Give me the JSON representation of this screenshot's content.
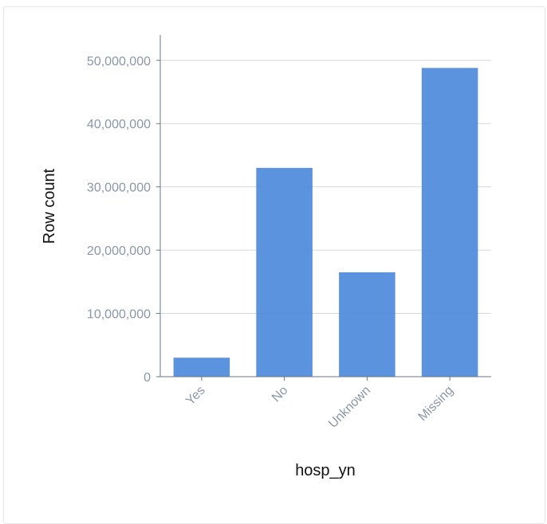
{
  "chart_data": {
    "type": "bar",
    "categories": [
      "Yes",
      "No",
      "Unknown",
      "Missing"
    ],
    "values": [
      3000000,
      33000000,
      16500000,
      48800000
    ],
    "xlabel": "hosp_yn",
    "ylabel": "Row count",
    "ylim": [
      0,
      54000000
    ],
    "yticks": [
      0,
      10000000,
      20000000,
      30000000,
      40000000,
      50000000
    ],
    "ytick_labels": [
      "0",
      "10,000,000",
      "20,000,000",
      "30,000,000",
      "40,000,000",
      "50,000,000"
    ],
    "grid": true,
    "bar_color": "#4a87dc",
    "grid_color": "#d5d9de",
    "axis_color": "#6b7686"
  }
}
